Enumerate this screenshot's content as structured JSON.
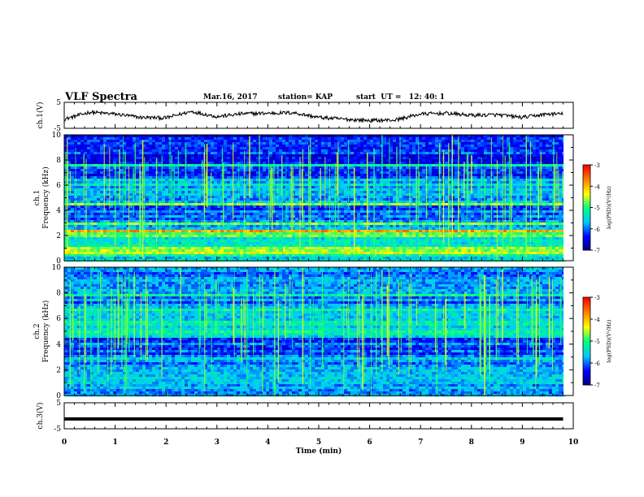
{
  "header": {
    "title": "VLF Spectra",
    "date": "Mar.16, 2017",
    "station": "station= KAP",
    "start_time": "start  UT =   12: 40: 1"
  },
  "chart_data": {
    "type": "heatmap",
    "xlabel": "Time  (min)",
    "xlim": [
      0,
      10
    ],
    "xticks": [
      "0",
      "1",
      "2",
      "3",
      "4",
      "5",
      "6",
      "7",
      "8",
      "9",
      "10"
    ],
    "panels": [
      {
        "name": "ch1-waveform",
        "type": "line",
        "ylabel": "ch.1(V)",
        "ylim": [
          -5,
          5
        ],
        "yticks": [
          "5",
          "-5"
        ],
        "x_min": [
          0.0,
          0.5,
          1.0,
          1.5,
          2.0,
          2.5,
          3.0,
          3.5,
          4.0,
          4.5,
          5.0,
          5.5,
          6.0,
          6.5,
          7.0,
          7.5,
          8.0,
          8.5,
          9.0,
          9.5,
          9.8
        ],
        "y_volts": [
          -1.5,
          1.2,
          0.5,
          -0.8,
          -1.0,
          1.5,
          -0.5,
          0.6,
          0.8,
          1.0,
          -0.8,
          -1.5,
          -2.0,
          -1.8,
          0.5,
          0.8,
          0.0,
          0.2,
          -0.8,
          0.5,
          0.5
        ]
      },
      {
        "name": "ch1-spectrogram",
        "type": "heatmap",
        "ylabel": "ch.1\nFrequency  (kHz)",
        "ylim": [
          0,
          10
        ],
        "yticks": [
          "0",
          "2",
          "4",
          "6",
          "8",
          "10"
        ],
        "colorbar": {
          "label": "log(PSD)(V²/Hz)",
          "min": -7,
          "max": -3,
          "ticks": [
            "-3",
            "-4",
            "-5",
            "-6",
            "-7"
          ]
        }
      },
      {
        "name": "ch2-spectrogram",
        "type": "heatmap",
        "ylabel": "ch.2\nFrequency  (kHz)",
        "ylim": [
          0,
          10
        ],
        "yticks": [
          "0",
          "2",
          "4",
          "6",
          "8",
          "10"
        ],
        "colorbar": {
          "label": "log(PSD)(V²/Hz)",
          "min": -7,
          "max": -3,
          "ticks": [
            "-3",
            "-4",
            "-5",
            "-6",
            "-7"
          ]
        }
      },
      {
        "name": "ch3-waveform",
        "type": "line",
        "ylabel": "ch.3(V)",
        "ylim": [
          -5,
          5
        ],
        "yticks": [
          "5",
          "-5"
        ],
        "x_min": [
          0,
          9.8
        ],
        "y_volts": [
          -1.2,
          -1.2
        ]
      }
    ],
    "colormap": [
      "#000080",
      "#0000ff",
      "#00c8ff",
      "#00ff80",
      "#ffff00",
      "#ff8000",
      "#ff0000",
      "#ffffff"
    ]
  }
}
